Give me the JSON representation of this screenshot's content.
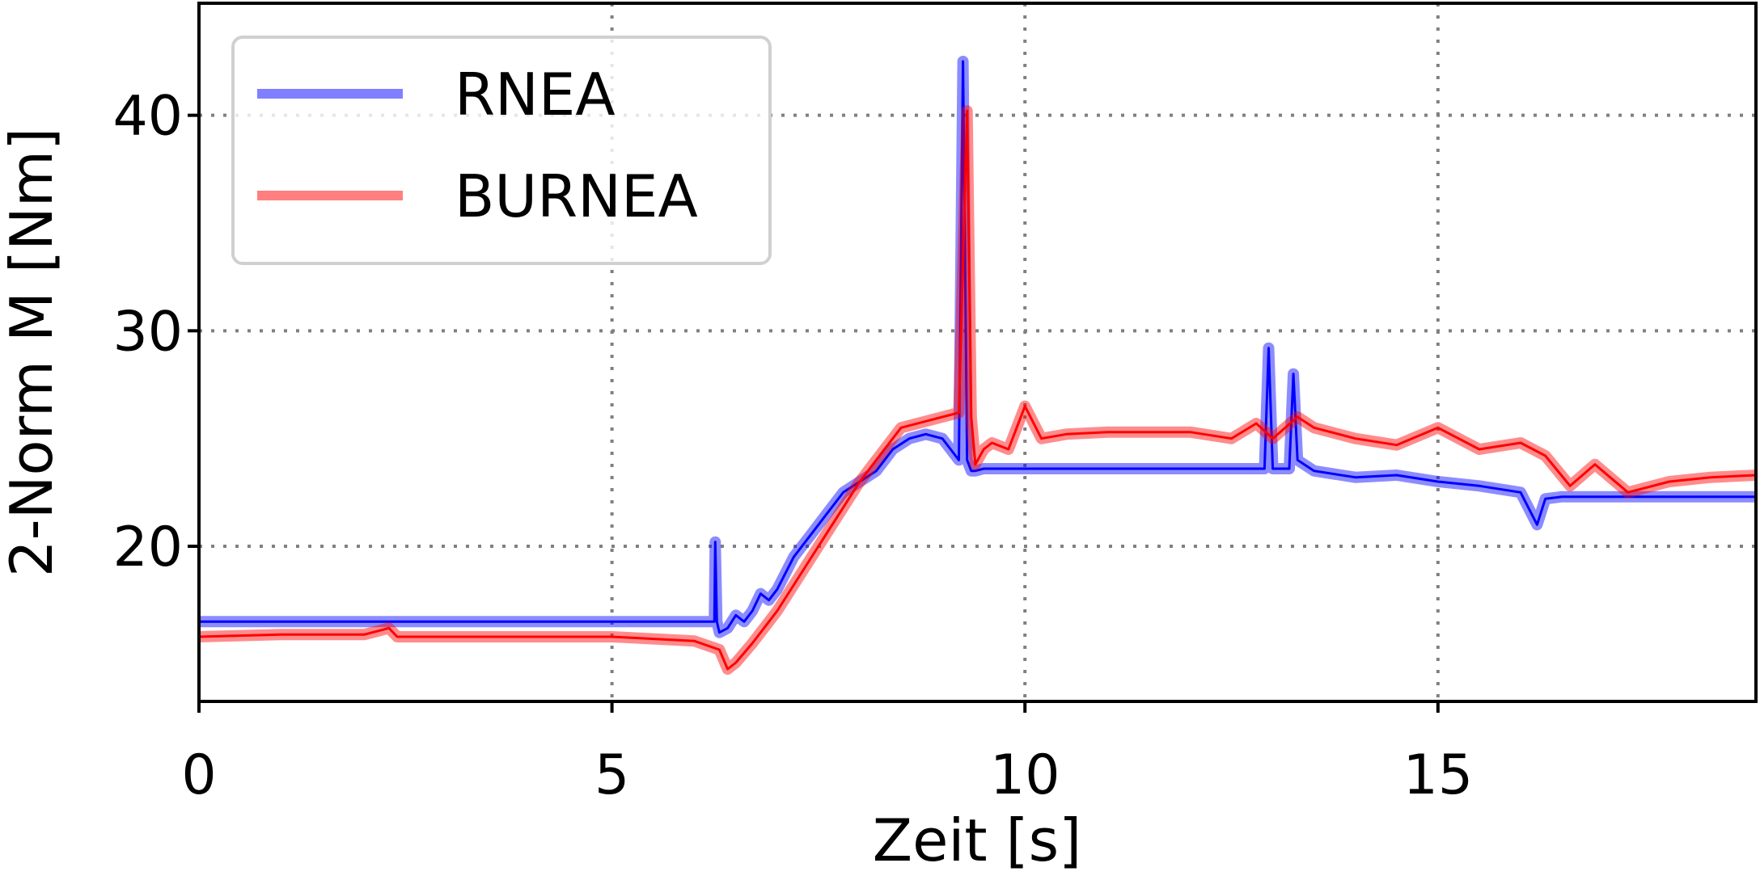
{
  "chart_data": {
    "type": "line",
    "title": "",
    "xlabel": "Zeit [s]",
    "ylabel": "2-Norm M [Nm]",
    "xlim": [
      0,
      18.85
    ],
    "ylim": [
      12.8,
      45.2
    ],
    "xticks": [
      0,
      5,
      10,
      15
    ],
    "yticks": [
      20,
      30,
      40
    ],
    "grid": true,
    "legend_position": "top-left",
    "series": [
      {
        "name": "RNEA",
        "color": "#0000ff",
        "x": [
          0,
          6.24,
          6.25,
          6.27,
          6.3,
          6.4,
          6.5,
          6.6,
          6.7,
          6.8,
          6.9,
          7.0,
          7.2,
          7.4,
          7.6,
          7.8,
          8.0,
          8.2,
          8.4,
          8.6,
          8.8,
          9.0,
          9.1,
          9.2,
          9.25,
          9.3,
          9.35,
          9.4,
          9.5,
          10.0,
          11.0,
          12.0,
          12.9,
          12.95,
          13.0,
          13.2,
          13.25,
          13.3,
          13.5,
          14.0,
          14.5,
          15.0,
          15.5,
          16.0,
          16.2,
          16.3,
          16.5,
          17.0,
          18.0,
          18.85
        ],
        "y": [
          16.5,
          16.5,
          20.2,
          16.5,
          16.0,
          16.2,
          16.8,
          16.5,
          17.0,
          17.8,
          17.5,
          18.0,
          19.5,
          20.5,
          21.5,
          22.5,
          23.0,
          23.5,
          24.5,
          25.0,
          25.2,
          25.0,
          24.5,
          24.0,
          42.5,
          24.0,
          23.5,
          23.5,
          23.6,
          23.6,
          23.6,
          23.6,
          23.6,
          29.2,
          23.6,
          23.6,
          28.0,
          24.0,
          23.5,
          23.2,
          23.3,
          23.0,
          22.8,
          22.5,
          21.0,
          22.2,
          22.3,
          22.3,
          22.3,
          22.3
        ]
      },
      {
        "name": "BURNEA",
        "color": "#ff0000",
        "x": [
          0,
          1.0,
          2.0,
          2.3,
          2.4,
          3.0,
          4.0,
          5.0,
          6.0,
          6.3,
          6.4,
          6.5,
          6.7,
          7.0,
          7.5,
          8.0,
          8.5,
          9.0,
          9.2,
          9.3,
          9.35,
          9.4,
          9.5,
          9.6,
          9.8,
          10.0,
          10.2,
          10.5,
          11.0,
          11.5,
          12.0,
          12.5,
          12.8,
          13.0,
          13.3,
          13.5,
          14.0,
          14.5,
          15.0,
          15.5,
          16.0,
          16.3,
          16.6,
          16.9,
          17.3,
          17.8,
          18.3,
          18.85
        ],
        "y": [
          15.8,
          15.9,
          15.9,
          16.2,
          15.8,
          15.8,
          15.8,
          15.8,
          15.6,
          15.2,
          14.3,
          14.6,
          15.5,
          17.0,
          20.0,
          23.0,
          25.5,
          26.0,
          26.2,
          40.2,
          26.0,
          23.8,
          24.5,
          24.8,
          24.5,
          26.5,
          25.0,
          25.2,
          25.3,
          25.3,
          25.3,
          25.0,
          25.7,
          25.0,
          26.0,
          25.5,
          25.0,
          24.7,
          25.5,
          24.5,
          24.8,
          24.2,
          22.8,
          23.8,
          22.5,
          23.0,
          23.2,
          23.3
        ]
      }
    ]
  }
}
